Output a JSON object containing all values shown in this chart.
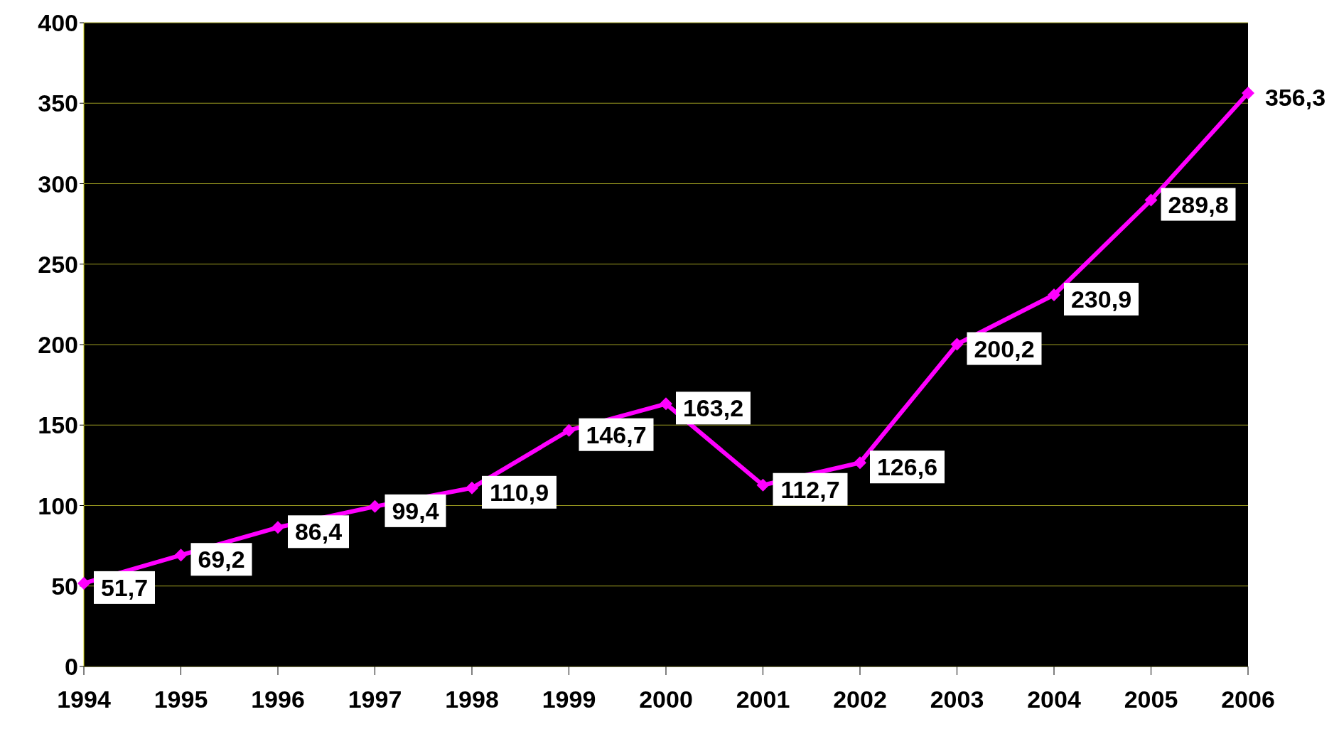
{
  "chart_data": {
    "type": "line",
    "categories": [
      "1994",
      "1995",
      "1996",
      "1997",
      "1998",
      "1999",
      "2000",
      "2001",
      "2002",
      "2003",
      "2004",
      "2005",
      "2006"
    ],
    "series": [
      {
        "color": "#ff00ff",
        "values": [
          51.7,
          69.2,
          86.4,
          99.4,
          110.9,
          146.7,
          163.2,
          112.7,
          126.6,
          200.2,
          230.9,
          289.8,
          356.3
        ],
        "value_labels": [
          "51,7",
          "69,2",
          "86,4",
          "99,4",
          "110,9",
          "146,7",
          "163,2",
          "112,7",
          "126,6",
          "200,2",
          "230,9",
          "289,8",
          "356,3"
        ]
      }
    ],
    "ylim": [
      0,
      400
    ],
    "yticks": [
      0,
      50,
      100,
      150,
      200,
      250,
      300,
      350,
      400
    ],
    "grid": "y",
    "legend": false,
    "marker": "diamond",
    "line_style": "solid"
  }
}
